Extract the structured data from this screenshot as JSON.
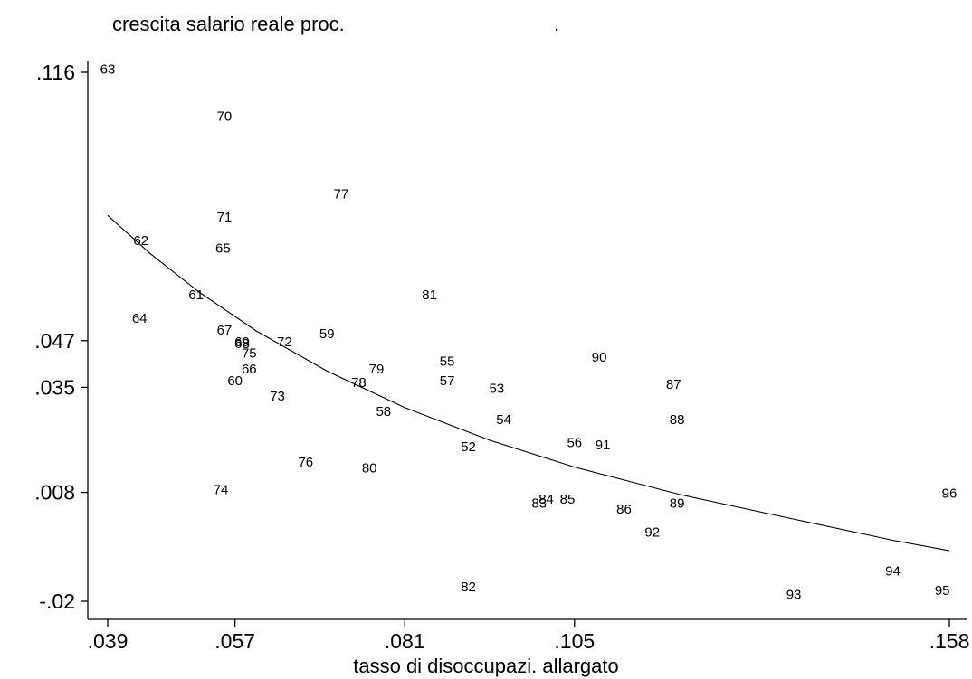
{
  "chart_data": {
    "type": "scatter",
    "title": "crescita salario reale proc.",
    "title_suffix": ".",
    "xlabel": "tasso di disoccupazi. allargato",
    "ylabel": "",
    "x_ticks": [
      ".039",
      ".057",
      ".081",
      ".105",
      ".158"
    ],
    "x_tick_values": [
      0.039,
      0.057,
      0.081,
      0.105,
      0.158
    ],
    "y_ticks": [
      ".116",
      ".047",
      ".035",
      ".008",
      "-.02"
    ],
    "y_tick_values": [
      0.116,
      0.047,
      0.035,
      0.008,
      -0.02
    ],
    "xlim": [
      0.036,
      0.161
    ],
    "ylim": [
      -0.025,
      0.118
    ],
    "grid": false,
    "legend": "none",
    "points": [
      {
        "label": "63",
        "x": 0.039,
        "y": 0.117
      },
      {
        "label": "70",
        "x": 0.0555,
        "y": 0.105
      },
      {
        "label": "77",
        "x": 0.072,
        "y": 0.085
      },
      {
        "label": "71",
        "x": 0.0555,
        "y": 0.079
      },
      {
        "label": "62",
        "x": 0.0437,
        "y": 0.073
      },
      {
        "label": "65",
        "x": 0.0553,
        "y": 0.071
      },
      {
        "label": "81",
        "x": 0.0845,
        "y": 0.059
      },
      {
        "label": "61",
        "x": 0.0515,
        "y": 0.059
      },
      {
        "label": "64",
        "x": 0.0435,
        "y": 0.053
      },
      {
        "label": "67",
        "x": 0.0555,
        "y": 0.05
      },
      {
        "label": "59",
        "x": 0.07,
        "y": 0.049
      },
      {
        "label": "69",
        "x": 0.058,
        "y": 0.047
      },
      {
        "label": "68",
        "x": 0.058,
        "y": 0.0465
      },
      {
        "label": "72",
        "x": 0.064,
        "y": 0.047
      },
      {
        "label": "75",
        "x": 0.059,
        "y": 0.044
      },
      {
        "label": "55",
        "x": 0.087,
        "y": 0.042
      },
      {
        "label": "90",
        "x": 0.1085,
        "y": 0.043
      },
      {
        "label": "66",
        "x": 0.059,
        "y": 0.04
      },
      {
        "label": "79",
        "x": 0.077,
        "y": 0.04
      },
      {
        "label": "60",
        "x": 0.057,
        "y": 0.037
      },
      {
        "label": "78",
        "x": 0.0745,
        "y": 0.0365
      },
      {
        "label": "57",
        "x": 0.087,
        "y": 0.037
      },
      {
        "label": "53",
        "x": 0.094,
        "y": 0.035
      },
      {
        "label": "87",
        "x": 0.119,
        "y": 0.036
      },
      {
        "label": "73",
        "x": 0.063,
        "y": 0.033
      },
      {
        "label": "58",
        "x": 0.078,
        "y": 0.029
      },
      {
        "label": "54",
        "x": 0.095,
        "y": 0.027
      },
      {
        "label": "88",
        "x": 0.1195,
        "y": 0.027
      },
      {
        "label": "56",
        "x": 0.105,
        "y": 0.021
      },
      {
        "label": "91",
        "x": 0.109,
        "y": 0.0205
      },
      {
        "label": "52",
        "x": 0.09,
        "y": 0.02
      },
      {
        "label": "76",
        "x": 0.067,
        "y": 0.016
      },
      {
        "label": "80",
        "x": 0.076,
        "y": 0.0145
      },
      {
        "label": "74",
        "x": 0.055,
        "y": 0.009
      },
      {
        "label": "84",
        "x": 0.101,
        "y": 0.0065
      },
      {
        "label": "85",
        "x": 0.104,
        "y": 0.0065
      },
      {
        "label": "83",
        "x": 0.1,
        "y": 0.0055
      },
      {
        "label": "89",
        "x": 0.1195,
        "y": 0.0055
      },
      {
        "label": "86",
        "x": 0.112,
        "y": 0.004
      },
      {
        "label": "92",
        "x": 0.116,
        "y": -0.002
      },
      {
        "label": "96",
        "x": 0.158,
        "y": 0.008
      },
      {
        "label": "94",
        "x": 0.15,
        "y": -0.012
      },
      {
        "label": "82",
        "x": 0.09,
        "y": -0.016
      },
      {
        "label": "95",
        "x": 0.157,
        "y": -0.017
      },
      {
        "label": "93",
        "x": 0.136,
        "y": -0.018
      }
    ],
    "fit_curve": [
      {
        "x": 0.039,
        "y": 0.0792
      },
      {
        "x": 0.045,
        "y": 0.0694
      },
      {
        "x": 0.052,
        "y": 0.0594
      },
      {
        "x": 0.06,
        "y": 0.0495
      },
      {
        "x": 0.07,
        "y": 0.0392
      },
      {
        "x": 0.081,
        "y": 0.0298
      },
      {
        "x": 0.093,
        "y": 0.0214
      },
      {
        "x": 0.105,
        "y": 0.0145
      },
      {
        "x": 0.12,
        "y": 0.0074
      },
      {
        "x": 0.135,
        "y": 0.0015
      },
      {
        "x": 0.15,
        "y": -0.0043
      },
      {
        "x": 0.158,
        "y": -0.007
      }
    ]
  }
}
